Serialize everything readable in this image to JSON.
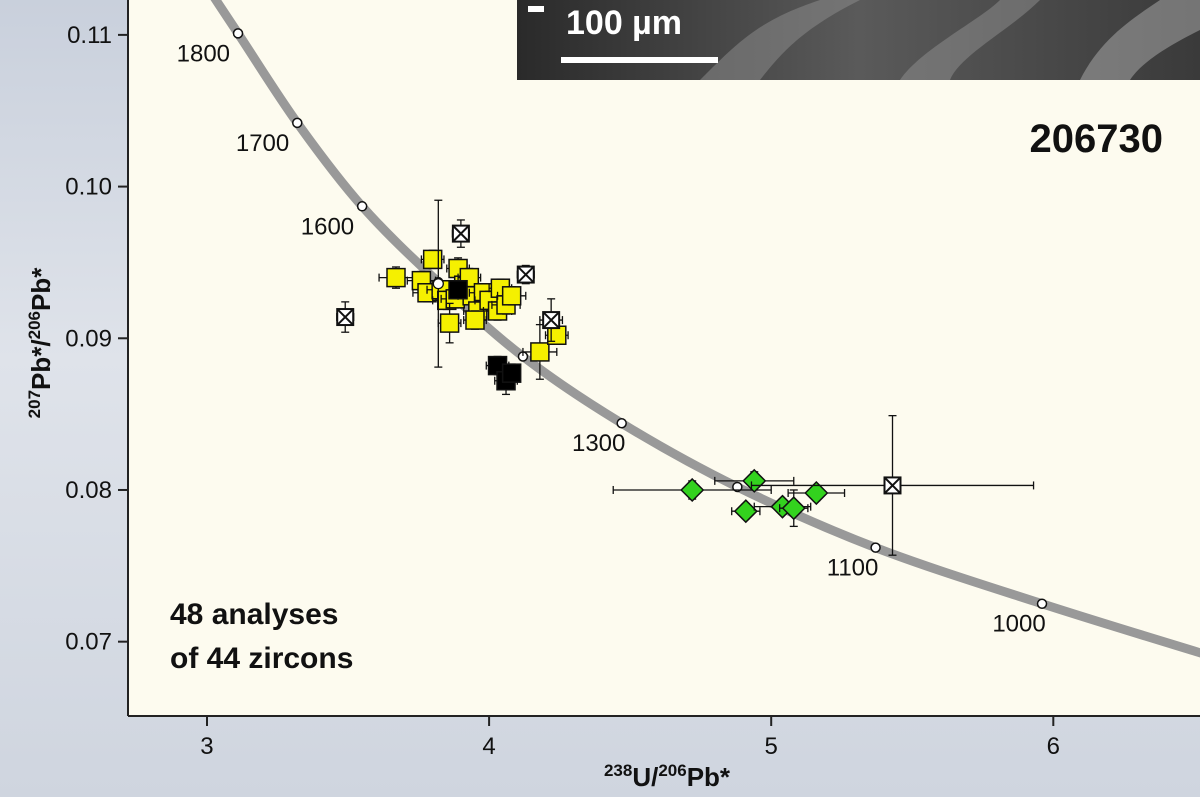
{
  "chart_data": {
    "type": "scatter",
    "title": "",
    "sample_id": "206730",
    "xlabel": {
      "pre": "238",
      "mid": "U/",
      "sup2": "206",
      "post": "Pb*"
    },
    "ylabel": {
      "sup1": "207",
      "mid": "Pb*/",
      "sup2": "206",
      "post": "Pb*"
    },
    "xlim": [
      2.72,
      6.52
    ],
    "ylim": [
      0.0651,
      0.1123
    ],
    "x_ticks": [
      3,
      4,
      5,
      6
    ],
    "x_tick_labels": [
      "3",
      "4",
      "5",
      "6"
    ],
    "y_ticks": [
      0.07,
      0.08,
      0.09,
      0.1,
      0.11
    ],
    "y_tick_labels": [
      "0.07",
      "0.08",
      "0.09",
      "0.10",
      "0.11"
    ],
    "grid": false,
    "concordia": {
      "color": "#999999",
      "ages": [
        {
          "age": "1800",
          "x": 3.11,
          "y": 0.1101
        },
        {
          "age": "1700",
          "x": 3.32,
          "y": 0.1042
        },
        {
          "age": "1600",
          "x": 3.55,
          "y": 0.0987
        },
        {
          "age": "",
          "x": 3.82,
          "y": 0.0937
        },
        {
          "age": "",
          "x": 4.12,
          "y": 0.0888
        },
        {
          "age": "1300",
          "x": 4.47,
          "y": 0.0844
        },
        {
          "age": "",
          "x": 4.88,
          "y": 0.0802
        },
        {
          "age": "1100",
          "x": 5.37,
          "y": 0.0762
        },
        {
          "age": "1000",
          "x": 5.96,
          "y": 0.0725
        }
      ]
    },
    "annotation": [
      "48 analyses",
      "of 44 zircons"
    ],
    "scale_bar": "100 µm",
    "series": [
      {
        "marker": "square",
        "color": "#f5f000",
        "points": [
          {
            "x": 3.67,
            "y": 0.094,
            "ex": 0.06,
            "ey": 0.0007
          },
          {
            "x": 3.76,
            "y": 0.0938,
            "ex": 0.05,
            "ey": 0.0006
          },
          {
            "x": 3.78,
            "y": 0.093,
            "ex": 0.05,
            "ey": 0.0006
          },
          {
            "x": 3.8,
            "y": 0.0952,
            "ex": 0.04,
            "ey": 0.0006
          },
          {
            "x": 3.83,
            "y": 0.0932,
            "ex": 0.05,
            "ey": 0.0006
          },
          {
            "x": 3.85,
            "y": 0.0925,
            "ex": 0.05,
            "ey": 0.0006
          },
          {
            "x": 3.89,
            "y": 0.0946,
            "ex": 0.04,
            "ey": 0.0007
          },
          {
            "x": 3.88,
            "y": 0.0926,
            "ex": 0.05,
            "ey": 0.0006
          },
          {
            "x": 3.91,
            "y": 0.0935,
            "ex": 0.05,
            "ey": 0.0006
          },
          {
            "x": 3.93,
            "y": 0.094,
            "ex": 0.04,
            "ey": 0.0006
          },
          {
            "x": 3.94,
            "y": 0.0928,
            "ex": 0.05,
            "ey": 0.0006
          },
          {
            "x": 3.96,
            "y": 0.0918,
            "ex": 0.05,
            "ey": 0.0006
          },
          {
            "x": 3.98,
            "y": 0.093,
            "ex": 0.05,
            "ey": 0.0006
          },
          {
            "x": 4.0,
            "y": 0.0925,
            "ex": 0.05,
            "ey": 0.0006
          },
          {
            "x": 4.03,
            "y": 0.0918,
            "ex": 0.05,
            "ey": 0.0006
          },
          {
            "x": 4.04,
            "y": 0.0933,
            "ex": 0.04,
            "ey": 0.0006
          },
          {
            "x": 4.06,
            "y": 0.0922,
            "ex": 0.05,
            "ey": 0.0006
          },
          {
            "x": 4.08,
            "y": 0.0928,
            "ex": 0.05,
            "ey": 0.0006
          },
          {
            "x": 3.86,
            "y": 0.091,
            "ex": 0.04,
            "ey": 0.0013
          },
          {
            "x": 3.95,
            "y": 0.0912,
            "ex": 0.04,
            "ey": 0.0006
          },
          {
            "x": 4.18,
            "y": 0.0891,
            "ex": 0.06,
            "ey": 0.0018
          },
          {
            "x": 4.24,
            "y": 0.0902,
            "ex": 0.04,
            "ey": 0.0006
          }
        ]
      },
      {
        "marker": "square",
        "color": "#000000",
        "points": [
          {
            "x": 3.89,
            "y": 0.0932,
            "ex": 0.03,
            "ey": 0.0005
          },
          {
            "x": 4.03,
            "y": 0.0882,
            "ex": 0.04,
            "ey": 0.0006
          },
          {
            "x": 4.06,
            "y": 0.0872,
            "ex": 0.04,
            "ey": 0.0009
          },
          {
            "x": 4.08,
            "y": 0.0877,
            "ex": 0.03,
            "ey": 0.0006
          }
        ]
      },
      {
        "marker": "diamond",
        "color": "#33d21e",
        "points": [
          {
            "x": 4.72,
            "y": 0.08,
            "ex": 0.28,
            "ey": 0.0006
          },
          {
            "x": 4.91,
            "y": 0.0786,
            "ex": 0.05,
            "ey": 0.0005
          },
          {
            "x": 4.94,
            "y": 0.0806,
            "ex": 0.14,
            "ey": 0.0006
          },
          {
            "x": 5.04,
            "y": 0.0789,
            "ex": 0.1,
            "ey": 0.0005
          },
          {
            "x": 5.08,
            "y": 0.0788,
            "ex": 0.05,
            "ey": 0.0012
          },
          {
            "x": 5.16,
            "y": 0.0798,
            "ex": 0.1,
            "ey": 0.0005
          }
        ]
      },
      {
        "marker": "crossed-square",
        "color": "#ffffff",
        "points": [
          {
            "x": 3.49,
            "y": 0.0914,
            "ex": 0.03,
            "ey": 0.001
          },
          {
            "x": 3.9,
            "y": 0.0969,
            "ex": 0.03,
            "ey": 0.0009
          },
          {
            "x": 4.13,
            "y": 0.0942,
            "ex": 0.03,
            "ey": 0.0006
          },
          {
            "x": 4.22,
            "y": 0.0912,
            "ex": 0.04,
            "ey": 0.0014
          },
          {
            "x": 5.43,
            "y": 0.0803,
            "ex": 0.5,
            "ey": 0.0046
          }
        ]
      },
      {
        "marker": "crossed-square-errorbar",
        "color": "#ffffff",
        "points": [
          {
            "x": 3.82,
            "y": 0.0936,
            "ex": 0.0,
            "ey": 0.0055
          }
        ]
      }
    ]
  }
}
